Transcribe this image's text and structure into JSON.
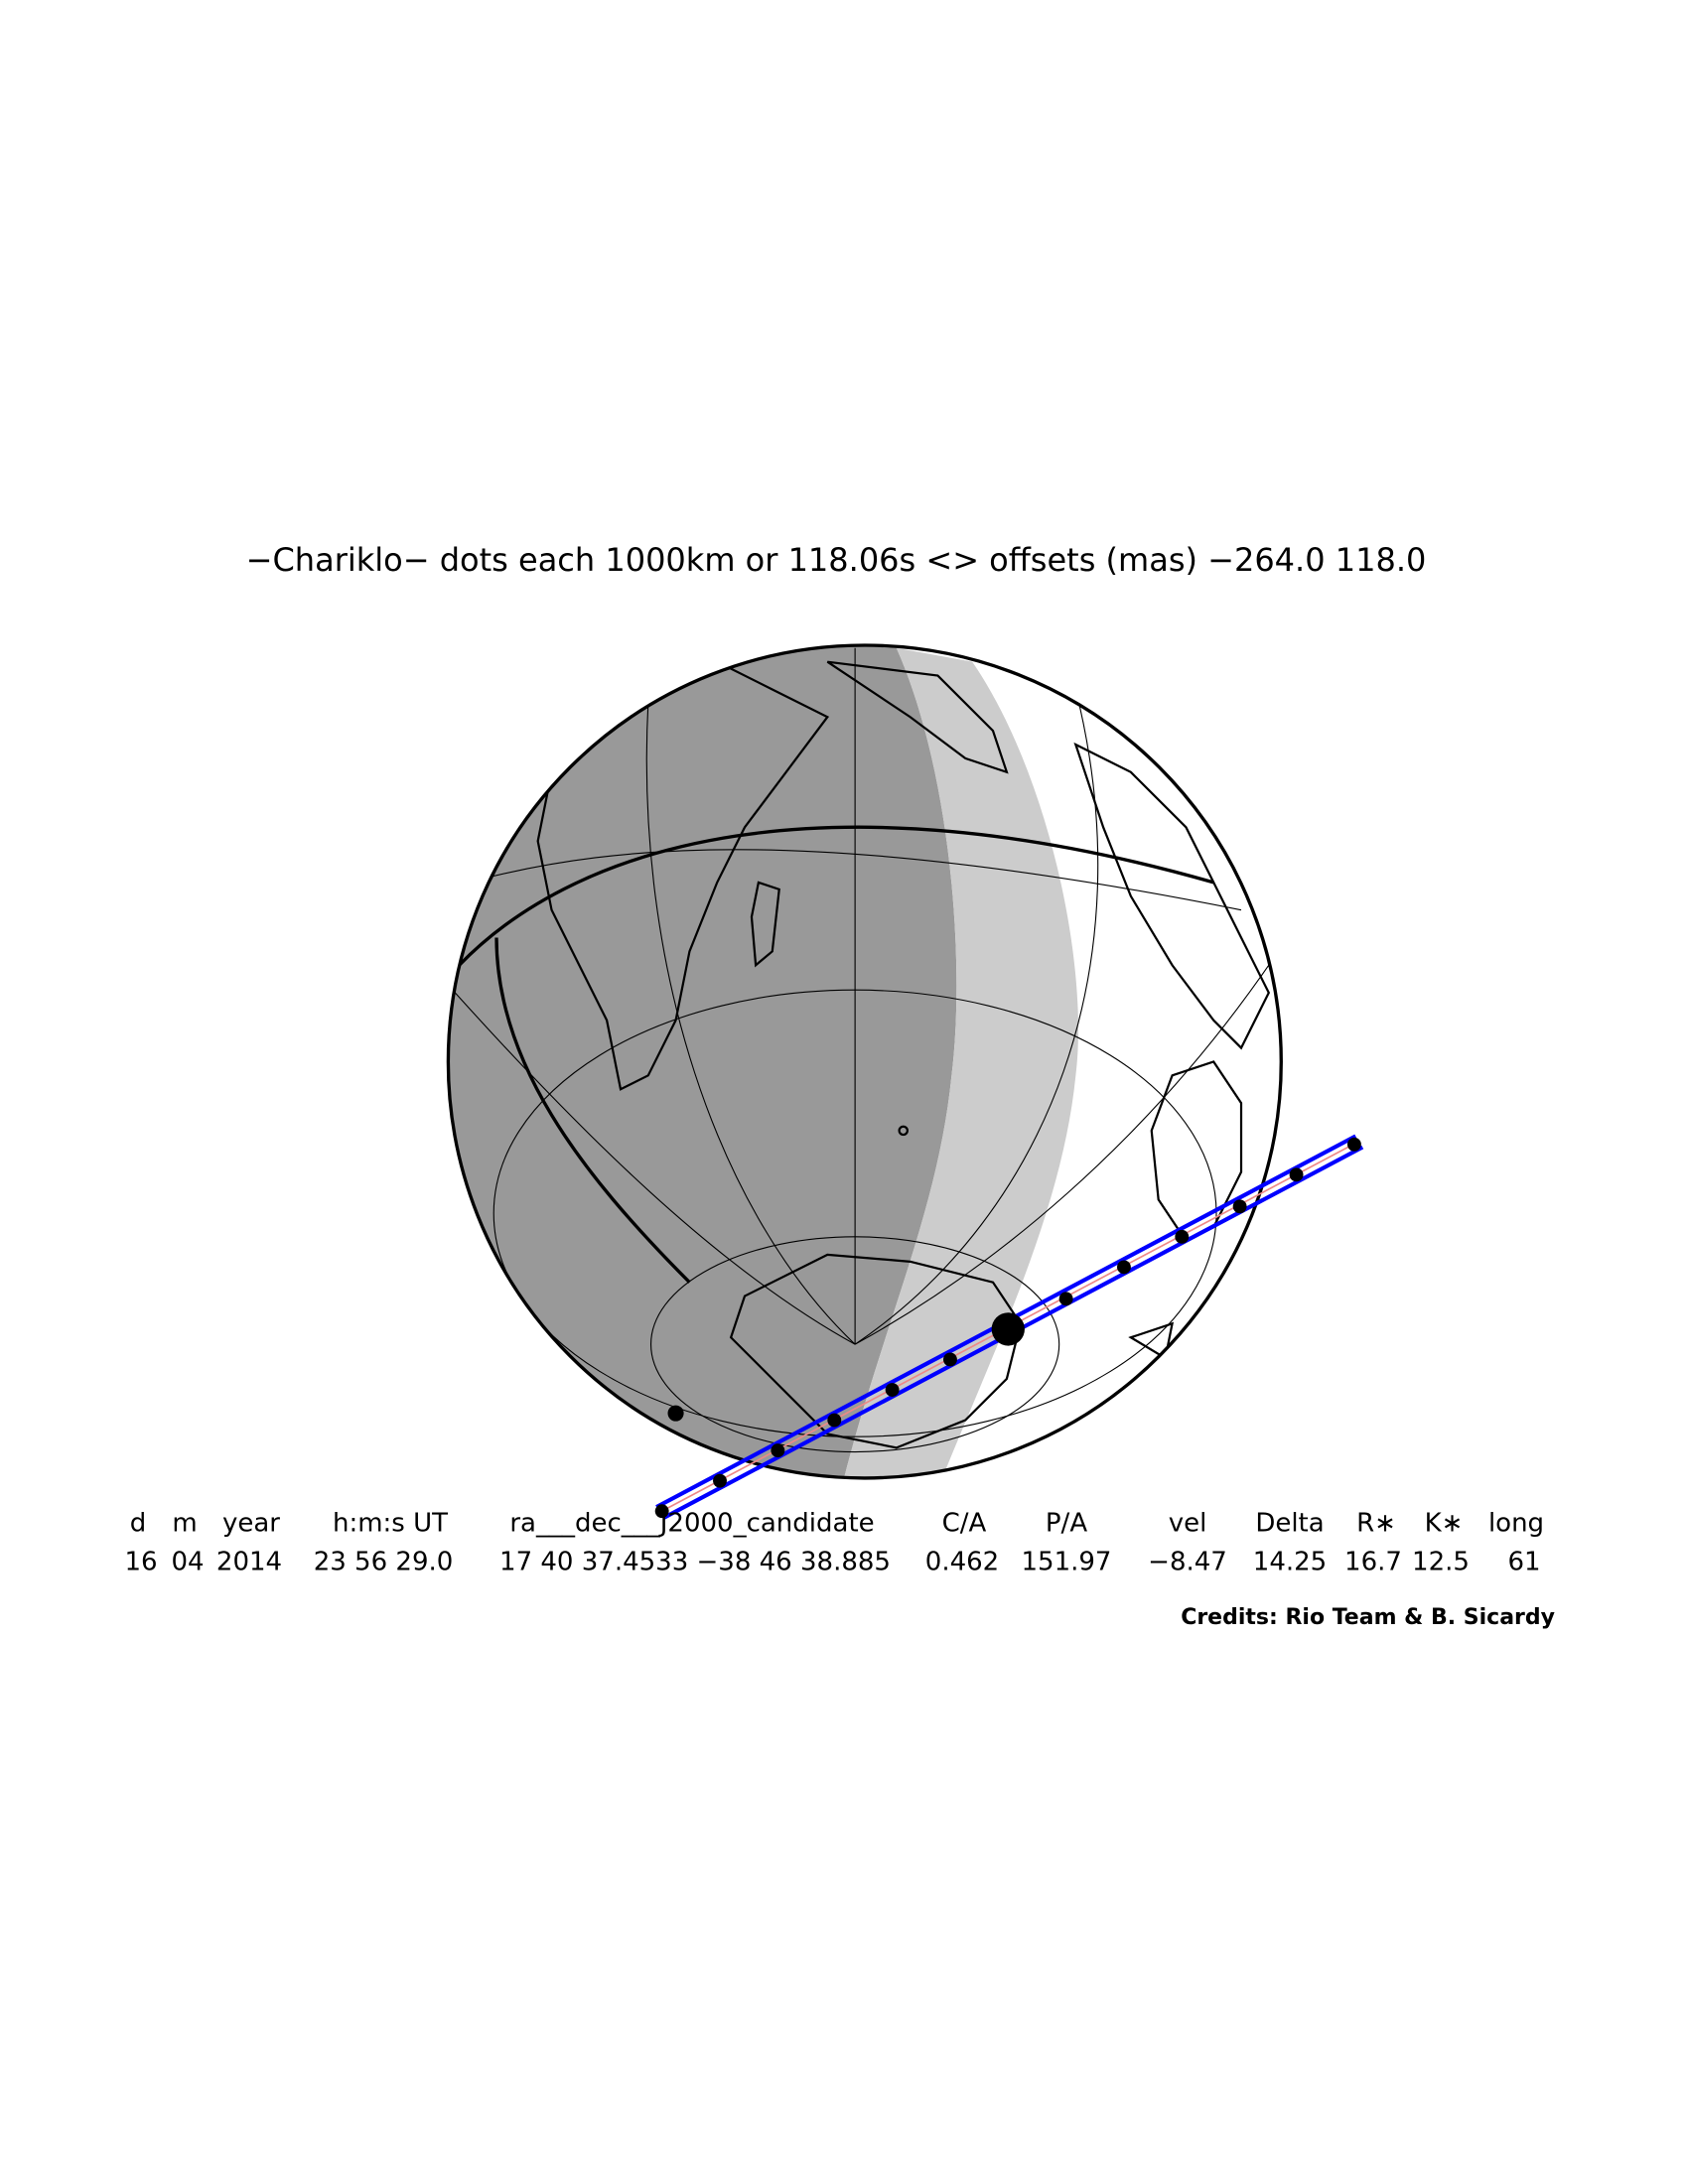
{
  "title": "−Chariklo− dots each 1000km or 118.06s <> offsets (mas) −264.0   118.0",
  "table": {
    "headers": [
      "d",
      "m",
      "year",
      "h:m:s UT",
      "ra___dec___J2000_candidate",
      "C/A",
      "P/A",
      "vel",
      "Delta",
      "R∗",
      "K∗",
      "long"
    ],
    "rows": [
      [
        "16",
        "04",
        "2014",
        "23 56 29.0",
        "17 40 37.4533 −38 46 38.885",
        "0.462",
        "151.97",
        "−8.47",
        "14.25",
        "16.7",
        "12.5",
        "61"
      ]
    ]
  },
  "credits": "Credits: Rio Team & B. Sicardy"
}
